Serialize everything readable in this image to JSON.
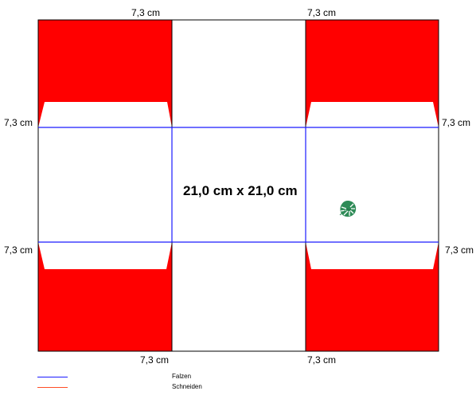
{
  "dimensions": {
    "top_left": "7,3 cm",
    "top_right": "7,3 cm",
    "left_upper": "7,3 cm",
    "right_upper": "7,3 cm",
    "left_lower": "7,3 cm",
    "right_lower": "7,3 cm",
    "bottom_left": "7,3 cm",
    "bottom_right": "7,3 cm"
  },
  "center_label": "21,0 cm x 21,0 cm",
  "legend": {
    "fold_label": "Falzen",
    "cut_label": "Schneiden"
  },
  "colors": {
    "fill": "#ff0000",
    "fold_line": "#1a1aff",
    "cut_line": "#ff4d26",
    "outline": "#000000",
    "leaf": "#2e8b57"
  },
  "icons": {
    "decoration": "monstera-leaf-icon"
  }
}
